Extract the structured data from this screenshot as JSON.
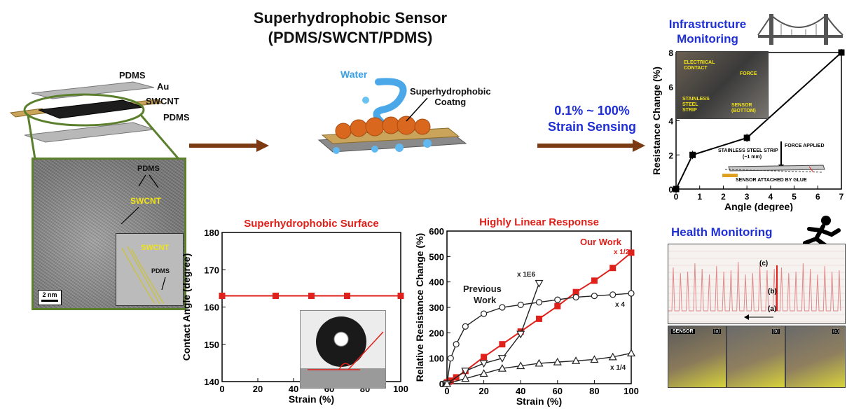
{
  "title": {
    "line1": "Superhydrophobic Sensor",
    "line2": "(PDMS/SWCNT/PDMS)"
  },
  "layers": {
    "pdms_top": "PDMS",
    "au": "Au",
    "swcnt": "SWCNT",
    "pdms_bottom": "PDMS"
  },
  "tem": {
    "pdms": "PDMS",
    "swcnt": "SWCNT",
    "inset_swcnt": "SWCNT",
    "inset_pdms": "PDMS",
    "scale": "2 nm"
  },
  "coating": {
    "water": "Water",
    "label_line1": "Superhydrophobic",
    "label_line2": "Coatng"
  },
  "strain_sensing": {
    "line1": "0.1% ~ 100%",
    "line2": "Strain Sensing"
  },
  "infra": {
    "title_line1": "Infrastructure",
    "title_line2": "Monitoring",
    "photo_labels": {
      "contact": "ELECTRICAL CONTACT",
      "force": "FORCE",
      "strip": "STAINLESS STEEL STRIP",
      "sensor": "SENSOR (BOTTOM)"
    },
    "diagram_labels": {
      "force": "FORCE APPLIED",
      "strip": "STAINLESS STEEL STRIP",
      "thickness": "(~1 mm)",
      "glue": "SENSOR ATTACHED BY GLUE"
    }
  },
  "health": {
    "title": "Health Monitoring",
    "marks": [
      "(c)",
      "(b)",
      "(a)"
    ],
    "photo_labels": [
      "SENSOR",
      "(a)",
      "(b)",
      "(c)"
    ]
  },
  "colors": {
    "red": "#e0201a",
    "blue": "#1f2fd6",
    "green_frame": "#5b7f2d",
    "arrow": "#7b3a12"
  },
  "chart_data": [
    {
      "type": "line",
      "title": "Superhydrophobic Surface",
      "xlabel": "Strain (%)",
      "ylabel": "Contact Angle (degree)",
      "xlim": [
        0,
        100
      ],
      "ylim": [
        140,
        180
      ],
      "xticks": [
        0,
        20,
        40,
        60,
        80,
        100
      ],
      "yticks": [
        140,
        150,
        160,
        170,
        180
      ],
      "series": [
        {
          "x": [
            0,
            30,
            50,
            70,
            100
          ],
          "y": [
            163,
            163,
            163,
            163,
            163
          ]
        }
      ]
    },
    {
      "type": "line",
      "title": "Highly Linear Response",
      "xlabel": "Strain (%)",
      "ylabel": "Relative Resistance Change (%)",
      "xlim": [
        0,
        100
      ],
      "ylim": [
        0,
        600
      ],
      "xticks": [
        0,
        20,
        40,
        60,
        80,
        100
      ],
      "yticks": [
        0,
        100,
        200,
        300,
        400,
        500,
        600
      ],
      "annotations": [
        "Our Work",
        "x 1/2",
        "x 1E6",
        "Previous",
        "Work",
        "x 4",
        "x 1/4"
      ],
      "series": [
        {
          "name": "Our Work",
          "marker": "square",
          "x": [
            0,
            1,
            2,
            5,
            10,
            20,
            30,
            40,
            50,
            60,
            70,
            80,
            90,
            100
          ],
          "y": [
            5,
            8,
            12,
            25,
            50,
            105,
            155,
            205,
            255,
            305,
            360,
            405,
            455,
            515
          ]
        },
        {
          "marker": "circle",
          "x": [
            0,
            2,
            5,
            10,
            20,
            30,
            40,
            50,
            60,
            70,
            80,
            90,
            100
          ],
          "y": [
            0,
            100,
            155,
            225,
            275,
            300,
            310,
            320,
            330,
            340,
            345,
            350,
            355
          ]
        },
        {
          "marker": "triangle-down",
          "x": [
            0,
            10,
            20,
            30,
            40,
            50
          ],
          "y": [
            0,
            50,
            80,
            100,
            195,
            395
          ]
        },
        {
          "marker": "triangle",
          "x": [
            0,
            10,
            20,
            30,
            40,
            50,
            60,
            70,
            80,
            90,
            100
          ],
          "y": [
            0,
            20,
            40,
            60,
            70,
            80,
            85,
            90,
            95,
            105,
            120
          ]
        }
      ]
    },
    {
      "type": "line",
      "xlabel": "Angle (degree)",
      "ylabel": "Resistance Change (%)",
      "xlim": [
        0,
        7
      ],
      "ylim": [
        0,
        8
      ],
      "xticks": [
        0,
        1,
        2,
        3,
        4,
        5,
        6,
        7
      ],
      "yticks": [
        0,
        2,
        4,
        6,
        8
      ],
      "series": [
        {
          "x": [
            0,
            0.7,
            3,
            7
          ],
          "y": [
            0,
            2,
            3,
            8
          ]
        }
      ]
    }
  ]
}
